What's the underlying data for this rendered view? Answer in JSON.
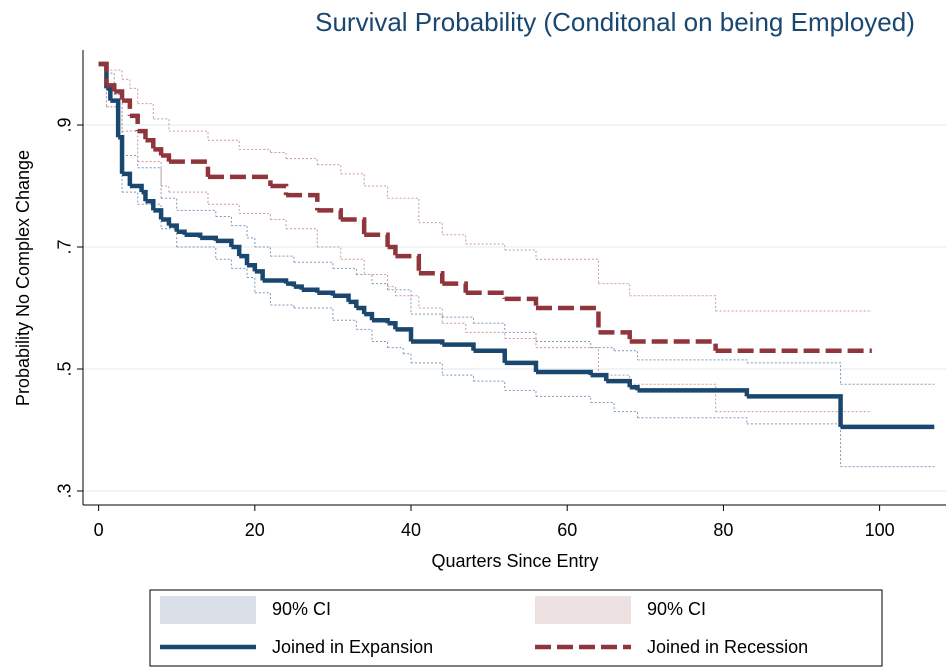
{
  "chart_data": {
    "type": "step",
    "title": "Survival Probability (Conditonal on being Employed)",
    "x_label": "Quarters Since Entry",
    "y_label": "Probability No Complex Change",
    "xlim": [
      -2,
      108.5
    ],
    "ylim": [
      0.277,
      1.023
    ],
    "xticks": [
      0,
      20,
      40,
      60,
      80,
      100
    ],
    "yticks": [
      {
        "value": 0.3,
        "label": ".3"
      },
      {
        "value": 0.5,
        "label": ".5"
      },
      {
        "value": 0.7,
        "label": ".7"
      },
      {
        "value": 0.9,
        "label": ".9"
      }
    ],
    "grid": true,
    "series": [
      {
        "name": "Joined in Expansion",
        "color": "#1a476f",
        "dash": false,
        "x": [
          0,
          1,
          1.5,
          2.5,
          3,
          4,
          5.5,
          6,
          7,
          8,
          9,
          10,
          11,
          13,
          15,
          17,
          18,
          19,
          20,
          21,
          24,
          25,
          26,
          28,
          30,
          32,
          33,
          34,
          35,
          37,
          38,
          40,
          44,
          48,
          52,
          56,
          63,
          65,
          68,
          69,
          83,
          95,
          107
        ],
        "values": [
          1.0,
          0.96,
          0.94,
          0.88,
          0.82,
          0.8,
          0.79,
          0.775,
          0.76,
          0.745,
          0.735,
          0.725,
          0.72,
          0.715,
          0.71,
          0.7,
          0.685,
          0.67,
          0.66,
          0.645,
          0.64,
          0.635,
          0.63,
          0.625,
          0.62,
          0.61,
          0.6,
          0.59,
          0.58,
          0.575,
          0.565,
          0.545,
          0.54,
          0.53,
          0.51,
          0.495,
          0.49,
          0.48,
          0.47,
          0.465,
          0.455,
          0.405,
          0.405
        ],
        "ci": {
          "name": "90% CI",
          "color": "#dbe0e8",
          "line_color": "#7f98ba",
          "lower": {
            "x": [
              0,
              1,
              3,
              5,
              8,
              10,
              15,
              17,
              19,
              20,
              22,
              25,
              30,
              33,
              35,
              37,
              39,
              40,
              44,
              48,
              52,
              56,
              63,
              66,
              69,
              83,
              95,
              107
            ],
            "values": [
              1.0,
              0.93,
              0.79,
              0.77,
              0.73,
              0.7,
              0.68,
              0.665,
              0.65,
              0.625,
              0.605,
              0.6,
              0.58,
              0.565,
              0.545,
              0.535,
              0.525,
              0.51,
              0.49,
              0.48,
              0.465,
              0.455,
              0.445,
              0.43,
              0.42,
              0.41,
              0.34,
              0.34
            ]
          },
          "upper": {
            "x": [
              0,
              1,
              2,
              3,
              5,
              8,
              10,
              15,
              17,
              19,
              20,
              22,
              25,
              30,
              33,
              35,
              37,
              40,
              44,
              48,
              52,
              56,
              63,
              66,
              69,
              83,
              95,
              107
            ],
            "values": [
              1.0,
              0.985,
              0.95,
              0.85,
              0.83,
              0.78,
              0.76,
              0.75,
              0.735,
              0.715,
              0.7,
              0.685,
              0.675,
              0.665,
              0.655,
              0.64,
              0.63,
              0.59,
              0.585,
              0.575,
              0.56,
              0.545,
              0.535,
              0.53,
              0.515,
              0.51,
              0.475,
              0.475
            ]
          }
        }
      },
      {
        "name": "Joined in Recession",
        "color": "#90353b",
        "dash": true,
        "x": [
          0,
          1,
          2,
          3,
          4,
          5,
          6,
          7,
          8,
          9,
          14,
          22,
          24,
          28,
          31,
          34,
          37,
          38,
          41,
          44,
          47,
          52,
          56,
          64,
          68,
          79,
          99
        ],
        "values": [
          1.0,
          0.965,
          0.955,
          0.94,
          0.915,
          0.89,
          0.875,
          0.86,
          0.85,
          0.84,
          0.815,
          0.8,
          0.785,
          0.76,
          0.745,
          0.72,
          0.7,
          0.685,
          0.657,
          0.64,
          0.625,
          0.615,
          0.6,
          0.56,
          0.545,
          0.53,
          0.53
        ],
        "ci": {
          "name": "90% CI",
          "color": "#eee1e1",
          "line_color": "#cc9a9a",
          "lower": {
            "x": [
              0,
              1,
              3,
              5,
              8,
              9,
              14,
              18,
              22,
              24,
              28,
              31,
              34,
              37,
              38,
              41,
              44,
              47,
              52,
              56,
              64,
              68,
              79,
              99
            ],
            "values": [
              1.0,
              0.93,
              0.89,
              0.84,
              0.8,
              0.79,
              0.77,
              0.755,
              0.745,
              0.73,
              0.7,
              0.68,
              0.655,
              0.635,
              0.62,
              0.6,
              0.575,
              0.56,
              0.55,
              0.535,
              0.49,
              0.475,
              0.43,
              0.43
            ]
          },
          "upper": {
            "x": [
              0,
              1,
              3,
              4,
              5,
              7,
              9,
              14,
              18,
              22,
              24,
              28,
              31,
              34,
              37,
              41,
              44,
              47,
              52,
              56,
              64,
              68,
              79,
              99
            ],
            "values": [
              1.0,
              0.99,
              0.975,
              0.96,
              0.935,
              0.91,
              0.89,
              0.875,
              0.86,
              0.855,
              0.845,
              0.835,
              0.82,
              0.8,
              0.78,
              0.74,
              0.72,
              0.705,
              0.695,
              0.68,
              0.64,
              0.62,
              0.595,
              0.595
            ]
          }
        }
      }
    ]
  }
}
